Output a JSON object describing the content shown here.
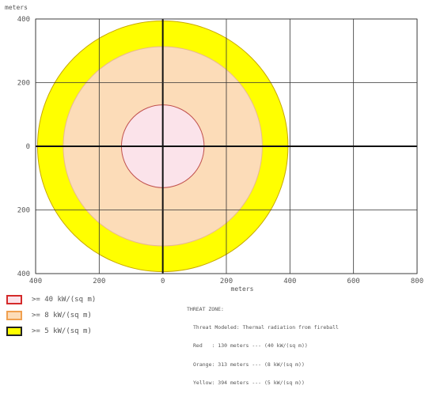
{
  "chart_data": {
    "type": "threat-zone-map",
    "xlabel": "meters",
    "ylabel": "meters",
    "xlim": [
      -400,
      800
    ],
    "ylim": [
      -400,
      400
    ],
    "x_ticks": [
      {
        "value": -400,
        "label": "400"
      },
      {
        "value": -200,
        "label": "200"
      },
      {
        "value": 0,
        "label": "0"
      },
      {
        "value": 200,
        "label": "200"
      },
      {
        "value": 400,
        "label": "400"
      },
      {
        "value": 600,
        "label": "600"
      },
      {
        "value": 800,
        "label": "800"
      }
    ],
    "y_ticks": [
      {
        "value": 400,
        "label": "400"
      },
      {
        "value": 200,
        "label": "200"
      },
      {
        "value": 0,
        "label": "0"
      },
      {
        "value": -200,
        "label": "200"
      },
      {
        "value": -400,
        "label": "400"
      }
    ],
    "grid": true,
    "zones": [
      {
        "name": "Yellow",
        "radius_m": 394,
        "fill": "#ffff00",
        "stroke": "#c8a800"
      },
      {
        "name": "Orange",
        "radius_m": 313,
        "fill": "#fcdcb8",
        "stroke": "#e8b890"
      },
      {
        "name": "Red",
        "radius_m": 130,
        "fill": "#fbe3ea",
        "stroke": "#c0504d"
      }
    ]
  },
  "legend": {
    "items": [
      {
        "label": ">= 40 kW/(sq m)",
        "fill": "#fbe3ea",
        "border": "#d42a2a"
      },
      {
        "label": ">= 8 kW/(sq m)",
        "fill": "#fcdcb8",
        "border": "#f0a050"
      },
      {
        "label": ">= 5 kW/(sq m)",
        "fill": "#ffff00",
        "border": "#222222"
      }
    ]
  },
  "summary": {
    "heading": "THREAT ZONE:",
    "modeled": "Threat Modeled: Thermal radiation from fireball",
    "lines": [
      "Red   : 130 meters --- (40 kW/(sq m))",
      "Orange: 313 meters --- (8 kW/(sq m))",
      "Yellow: 394 meters --- (5 kW/(sq m))"
    ]
  }
}
